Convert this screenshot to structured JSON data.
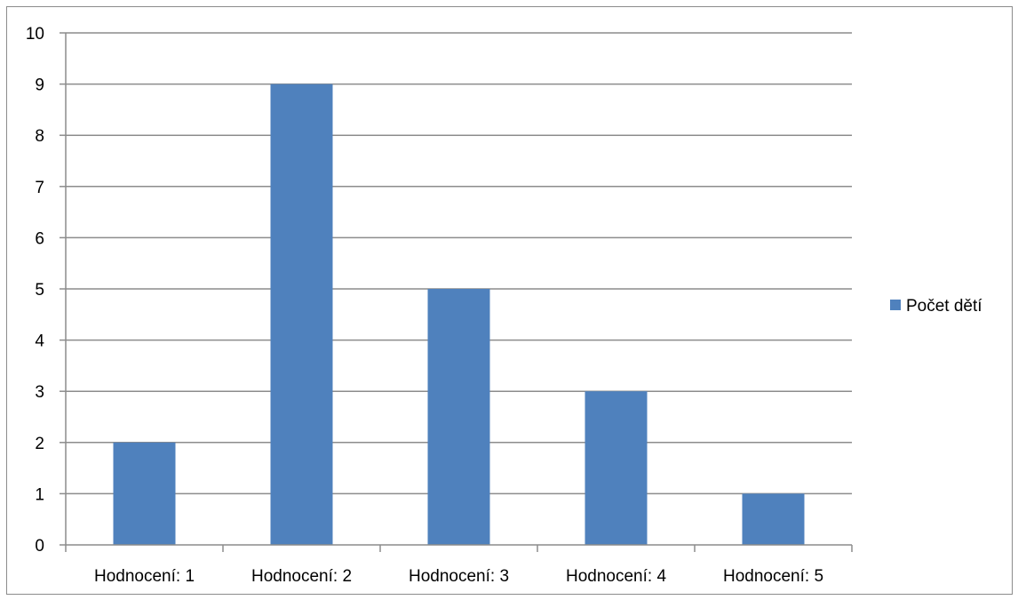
{
  "chart_data": {
    "type": "bar",
    "categories": [
      "Hodnocení: 1",
      "Hodnocení: 2",
      "Hodnocení: 3",
      "Hodnocení: 4",
      "Hodnocení: 5"
    ],
    "series": [
      {
        "name": "Počet dětí",
        "values": [
          2,
          9,
          5,
          3,
          1
        ],
        "color": "#4f81bd"
      }
    ],
    "title": "",
    "xlabel": "",
    "ylabel": "",
    "ylim": [
      0,
      10
    ],
    "yticks": [
      "0",
      "1",
      "2",
      "3",
      "4",
      "5",
      "6",
      "7",
      "8",
      "9",
      "10"
    ],
    "grid": true,
    "legend_position": "right",
    "colors": {
      "bar": "#4f81bd",
      "grid": "#8c8c8c",
      "axis": "#8c8c8c"
    }
  }
}
